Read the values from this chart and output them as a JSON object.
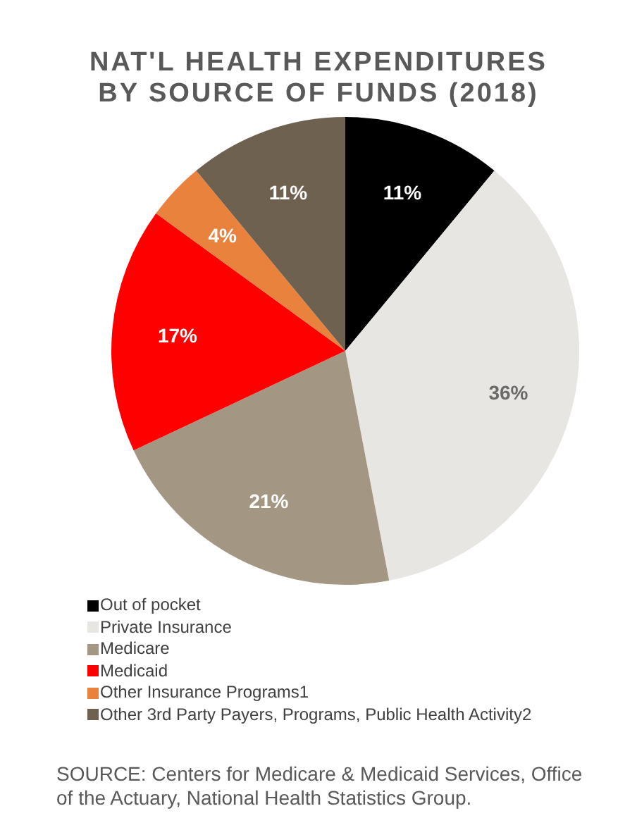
{
  "chart_data": {
    "type": "pie",
    "title": "NAT'L HEALTH EXPENDITURES\nBY SOURCE OF FUNDS (2018)",
    "categories": [
      "Out of pocket",
      "Private Insurance",
      "Medicare",
      "Medicaid",
      "Other Insurance Programs1",
      "Other 3rd Party Payers, Programs, Public Health Activity2"
    ],
    "values": [
      11,
      36,
      21,
      17,
      4,
      11
    ],
    "value_labels": [
      "11%",
      "36%",
      "21%",
      "17%",
      "4%",
      "11%"
    ],
    "colors": [
      "#000000",
      "#e8e6e3",
      "#a39682",
      "#ff0000",
      "#e8823c",
      "#6f6150"
    ],
    "legend": "bottom",
    "annotations": [
      "SOURCE: Centers for Medicare & Medicaid Services, Office of the Actuary, National Health Statistics Group."
    ]
  }
}
